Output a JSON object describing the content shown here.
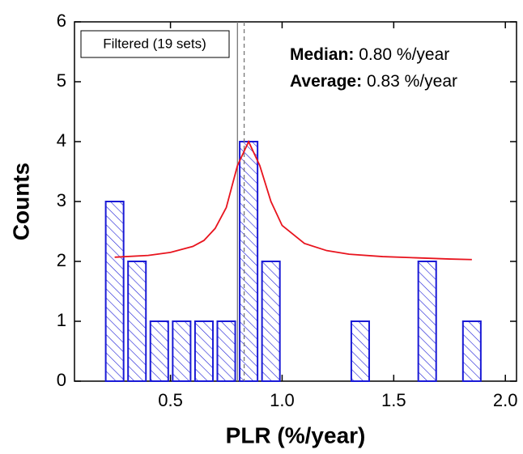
{
  "chart_data": {
    "type": "histogram",
    "x_label": "PLR (%/year)",
    "y_label": "Counts",
    "bins": [
      0.2,
      0.3,
      0.4,
      0.5,
      0.6,
      0.7,
      0.8,
      0.9,
      1.0,
      1.1,
      1.2,
      1.3,
      1.4,
      1.5,
      1.6,
      1.7,
      1.8,
      1.9
    ],
    "values": [
      3,
      2,
      1,
      1,
      1,
      1,
      4,
      2,
      0,
      0,
      0,
      1,
      0,
      0,
      2,
      0,
      1
    ],
    "color": "#1a1ad6",
    "fit": {
      "color": "#e8141e",
      "x": [
        0.25,
        0.4,
        0.5,
        0.6,
        0.65,
        0.7,
        0.75,
        0.8,
        0.85,
        0.9,
        0.95,
        1.0,
        1.1,
        1.2,
        1.3,
        1.45,
        1.6,
        1.75,
        1.85
      ],
      "values": [
        2.07,
        2.1,
        2.15,
        2.25,
        2.35,
        2.55,
        2.9,
        3.6,
        4.0,
        3.6,
        3.0,
        2.6,
        2.3,
        2.18,
        2.12,
        2.08,
        2.06,
        2.04,
        2.03
      ]
    },
    "median": {
      "value": 0.8,
      "label": "0.80 %/year"
    },
    "median_title": "Median:",
    "average": {
      "value": 0.83,
      "label": "0.83 %/year"
    },
    "average_title": "Average:",
    "legend_text": "Filtered (19 sets)",
    "xlim": [
      0.07,
      2.05
    ],
    "ylim": [
      0,
      6
    ],
    "xticks": [
      {
        "value": 0.5,
        "label": "0.5"
      },
      {
        "value": 1.0,
        "label": "1.0"
      },
      {
        "value": 1.5,
        "label": "1.5"
      },
      {
        "value": 2.0,
        "label": "2.0"
      }
    ],
    "yticks": [
      0,
      1,
      2,
      3,
      4,
      5,
      6
    ]
  }
}
